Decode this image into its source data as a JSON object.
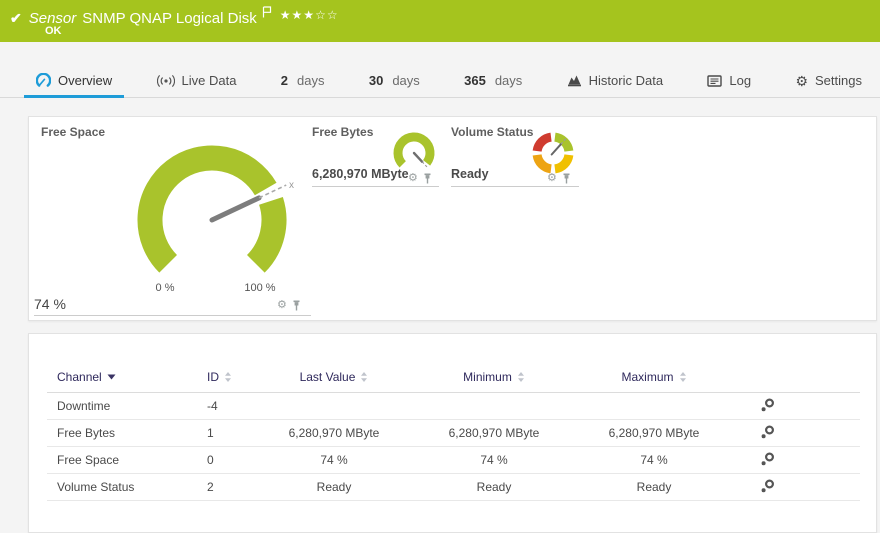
{
  "header": {
    "kind_label": "Sensor",
    "title": "SNMP QNAP Logical Disk",
    "status": "OK",
    "stars_filled": "★★★",
    "stars_empty": "☆☆",
    "color": "#a5c41e"
  },
  "tabs": [
    {
      "label": "Overview",
      "icon": "gauge-icon",
      "active": true
    },
    {
      "label": "Live Data",
      "icon": "live-icon"
    },
    {
      "num": "2",
      "label": "days"
    },
    {
      "num": "30",
      "label": "days"
    },
    {
      "num": "365",
      "label": "days"
    },
    {
      "label": "Historic Data",
      "icon": "chart-icon"
    },
    {
      "label": "Log",
      "icon": "log-icon"
    },
    {
      "label": "Settings",
      "icon": "settings-icon"
    }
  ],
  "gauges": {
    "free_space": {
      "title": "Free Space",
      "value": "74 %",
      "percent": 74,
      "min_label": "0 %",
      "max_label": "100 %",
      "marker": "x"
    },
    "free_bytes": {
      "title": "Free Bytes",
      "value": "6,280,970 MByte"
    },
    "volume_status": {
      "title": "Volume Status",
      "value": "Ready"
    }
  },
  "chart_data": {
    "type": "gauge-set",
    "gauges": [
      {
        "name": "Free Space",
        "value": 74,
        "unit": "%",
        "min": 0,
        "max": 100
      },
      {
        "name": "Free Bytes",
        "value": 6280970,
        "unit": "MByte"
      },
      {
        "name": "Volume Status",
        "value": "Ready"
      }
    ]
  },
  "table": {
    "columns": [
      "Channel",
      "ID",
      "Last Value",
      "Minimum",
      "Maximum"
    ],
    "rows": [
      {
        "channel": "Downtime",
        "id": "-4",
        "last": "",
        "min": "",
        "max": ""
      },
      {
        "channel": "Free Bytes",
        "id": "1",
        "last": "6,280,970 MByte",
        "min": "6,280,970 MByte",
        "max": "6,280,970 MByte"
      },
      {
        "channel": "Free Space",
        "id": "0",
        "last": "74 %",
        "min": "74 %",
        "max": "74 %"
      },
      {
        "channel": "Volume Status",
        "id": "2",
        "last": "Ready",
        "min": "Ready",
        "max": "Ready"
      }
    ]
  },
  "colors": {
    "status_ok_green": "#a5c41e",
    "gauge_green": "#a9c32c",
    "gauge_red": "#cf3b2f",
    "gauge_yellow": "#f0c000",
    "gauge_orange": "#eda414",
    "accent_blue": "#1e9cd8",
    "table_header_text": "#2f295c"
  }
}
